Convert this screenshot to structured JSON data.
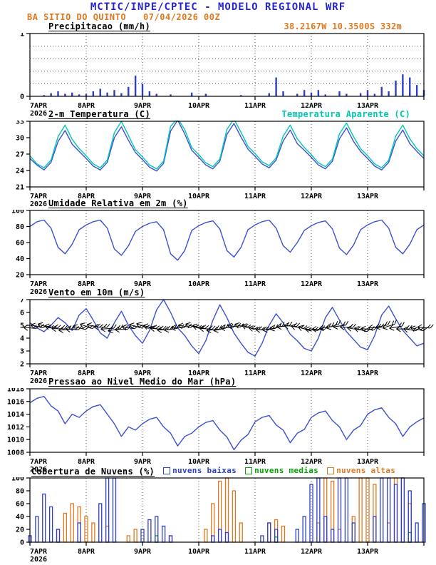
{
  "header": {
    "title": "MCTIC/INPE/CPTEC - MODELO REGIONAL WRF",
    "station": "BA SITIO DO QUINTO",
    "run_datetime": "07/04/2026 00Z",
    "location": "38.2167W 10.3500S 332m"
  },
  "colors": {
    "header_blue": "#2525c8",
    "orange": "#e07820",
    "line_blue": "#3c50d2",
    "cyan": "#00c8b4",
    "bar_blue": "#2d3fc8",
    "green": "#00a300",
    "black": "#000000"
  },
  "x_axis": {
    "hours_total": 168,
    "step_hours": 3,
    "tick_labels": [
      "7APR",
      "8APR",
      "9APR",
      "10APR",
      "11APR",
      "12APR",
      "13APR"
    ],
    "origin_year": "2026"
  },
  "chart_data": [
    {
      "id": "precipitacao",
      "type": "bar",
      "title": "Precipitacao (mm/h)",
      "right_label": "38.2167W 10.3500S 332m",
      "ylim": [
        0,
        1
      ],
      "yticks": [
        0,
        1
      ],
      "hgrid": [
        0.2,
        0.4,
        0.6,
        0.8
      ],
      "series": [
        {
          "name": "precipitacao",
          "color": "bar_blue",
          "values": [
            0,
            0,
            0.02,
            0.05,
            0.08,
            0.04,
            0.06,
            0.03,
            0.04,
            0.08,
            0.12,
            0.06,
            0.1,
            0.05,
            0.15,
            0.33,
            0.2,
            0.08,
            0.04,
            0,
            0.03,
            0,
            0,
            0.06,
            0,
            0.04,
            0,
            0,
            0,
            0,
            0.02,
            0,
            0,
            0,
            0.05,
            0.3,
            0.08,
            0,
            0.04,
            0.1,
            0.06,
            0.1,
            0.03,
            0,
            0.08,
            0.04,
            0,
            0.05,
            0.1,
            0.04,
            0.15,
            0.08,
            0.25,
            0.35,
            0.3,
            0.18,
            0.1
          ]
        }
      ]
    },
    {
      "id": "temperatura",
      "type": "line",
      "title": "2-m Temperatura (C)",
      "legend": [
        {
          "label": "Temperatura Aparente (C)",
          "color": "cyan",
          "swatch": false
        }
      ],
      "ylim": [
        21,
        33
      ],
      "yticks": [
        21,
        24,
        27,
        30,
        33
      ],
      "series": [
        {
          "name": "2-m Temperatura",
          "color": "line_blue",
          "values": [
            26.2,
            25.0,
            24.1,
            25.5,
            29.3,
            31.3,
            28.8,
            27.5,
            26.2,
            24.8,
            24.1,
            25.5,
            30.0,
            32.0,
            29.5,
            27.3,
            26.0,
            24.6,
            23.9,
            25.3,
            31.2,
            33.2,
            30.7,
            27.7,
            26.4,
            25.0,
            24.3,
            25.7,
            30.6,
            32.6,
            30.1,
            27.9,
            26.6,
            25.2,
            24.5,
            25.9,
            29.4,
            31.4,
            28.9,
            27.7,
            26.4,
            25.0,
            24.3,
            25.7,
            29.8,
            31.8,
            29.3,
            27.5,
            26.2,
            24.8,
            24.1,
            25.5,
            29.4,
            31.4,
            28.9,
            27.5,
            26.2
          ]
        },
        {
          "name": "Temperatura Aparente",
          "color": "cyan",
          "values": [
            26.7,
            25.2,
            24.5,
            25.9,
            30.2,
            32.3,
            29.7,
            28.0,
            26.7,
            25.2,
            24.5,
            25.9,
            30.9,
            33.0,
            30.4,
            27.8,
            26.5,
            25.0,
            24.3,
            25.7,
            32.1,
            33.5,
            31.5,
            28.2,
            26.9,
            25.4,
            24.7,
            26.1,
            31.5,
            33.4,
            31.0,
            28.4,
            27.1,
            25.6,
            24.9,
            26.3,
            30.3,
            32.3,
            29.8,
            28.2,
            26.9,
            25.4,
            24.7,
            26.1,
            30.7,
            32.7,
            30.2,
            28.0,
            26.7,
            25.2,
            24.5,
            25.9,
            30.3,
            32.3,
            29.8,
            28.0,
            26.7
          ]
        }
      ]
    },
    {
      "id": "umidade",
      "type": "line",
      "title": "Umidade Relativa em 2m (%)",
      "ylim": [
        20,
        100
      ],
      "yticks": [
        20,
        40,
        60,
        80,
        100
      ],
      "series": [
        {
          "name": "umidade relativa",
          "color": "line_blue",
          "values": [
            80,
            86,
            88,
            78,
            54,
            46,
            58,
            76,
            82,
            86,
            88,
            78,
            52,
            44,
            56,
            74,
            80,
            84,
            86,
            76,
            46,
            38,
            50,
            75,
            81,
            85,
            87,
            77,
            50,
            42,
            54,
            76,
            82,
            86,
            88,
            78,
            56,
            48,
            60,
            75,
            81,
            85,
            87,
            77,
            53,
            45,
            57,
            76,
            82,
            86,
            88,
            78,
            54,
            46,
            58,
            76,
            82
          ]
        }
      ]
    },
    {
      "id": "vento",
      "type": "wind",
      "title": "Vento em 10m (m/s)",
      "ylim": [
        2,
        7
      ],
      "yticks": [
        2,
        3,
        4,
        5,
        6,
        7
      ],
      "barb_value": 4.8,
      "barb_dirs": [
        5,
        12,
        18,
        10,
        2,
        -5,
        3,
        15,
        20,
        12,
        4,
        -4,
        -10,
        -2,
        8,
        16,
        22,
        14,
        6,
        -2,
        -8,
        0,
        10,
        18,
        12,
        4,
        -6,
        -12,
        -4,
        6,
        14,
        20,
        10,
        2,
        -8,
        -14,
        -6,
        4,
        12,
        18,
        8,
        0,
        -10,
        -16,
        -8,
        2,
        10,
        16,
        6,
        -2,
        -12,
        -18,
        -10,
        0,
        8,
        14,
        4
      ],
      "series": [
        {
          "name": "vento 10m",
          "color": "line_blue",
          "values": [
            5.2,
            4.8,
            4.5,
            5.0,
            5.6,
            5.2,
            4.6,
            5.8,
            6.3,
            5.4,
            4.4,
            4.0,
            5.2,
            6.1,
            5.0,
            4.2,
            3.6,
            4.6,
            6.2,
            7.0,
            6.0,
            4.8,
            4.2,
            3.4,
            2.8,
            3.8,
            5.4,
            6.6,
            5.6,
            4.4,
            3.6,
            2.9,
            2.6,
            3.6,
            5.0,
            5.9,
            5.2,
            4.3,
            3.8,
            3.2,
            3.0,
            4.0,
            5.6,
            6.4,
            5.4,
            4.5,
            3.9,
            3.3,
            3.1,
            4.2,
            5.8,
            6.5,
            5.5,
            4.6,
            4.0,
            3.4,
            3.6
          ]
        }
      ]
    },
    {
      "id": "pressao",
      "type": "line",
      "title": "Pressao ao Nivel Medio do Mar (hPa)",
      "ylim": [
        1008,
        1018
      ],
      "yticks": [
        1008,
        1010,
        1012,
        1014,
        1016,
        1018
      ],
      "series": [
        {
          "name": "pressao nivel do mar",
          "color": "line_blue",
          "values": [
            1015.8,
            1016.5,
            1016.8,
            1015.3,
            1014.5,
            1012.5,
            1014.0,
            1013.5,
            1014.5,
            1015.2,
            1015.5,
            1014.0,
            1012.5,
            1010.5,
            1012.0,
            1011.5,
            1012.5,
            1013.2,
            1013.5,
            1012.0,
            1011.0,
            1009.0,
            1010.5,
            1011.0,
            1012.0,
            1012.7,
            1013.0,
            1011.5,
            1010.4,
            1008.4,
            1009.9,
            1010.8,
            1012.8,
            1013.5,
            1013.8,
            1012.3,
            1011.5,
            1009.5,
            1011.0,
            1011.6,
            1013.5,
            1014.2,
            1014.5,
            1013.0,
            1012.0,
            1010.0,
            1011.5,
            1012.2,
            1014.0,
            1014.7,
            1015.0,
            1013.5,
            1012.5,
            1010.5,
            1012.0,
            1012.8,
            1013.4
          ]
        }
      ]
    },
    {
      "id": "nuvens",
      "type": "multibar",
      "title": "Cobertura de Nuvens (%)",
      "legend": [
        {
          "label": "nuvens baixas",
          "color": "bar_blue",
          "swatch": true
        },
        {
          "label": "nuvens medias",
          "color": "green",
          "swatch": true
        },
        {
          "label": "nuvens altas",
          "color": "orange",
          "swatch": true
        }
      ],
      "ylim": [
        0,
        100
      ],
      "yticks": [
        0,
        20,
        40,
        60,
        80,
        100
      ],
      "series": [
        {
          "name": "nuvens baixas",
          "color": "bar_blue",
          "values": [
            10,
            40,
            75,
            55,
            20,
            0,
            0,
            30,
            0,
            0,
            60,
            100,
            100,
            0,
            0,
            0,
            20,
            35,
            40,
            25,
            10,
            0,
            0,
            0,
            0,
            0,
            10,
            20,
            15,
            0,
            0,
            0,
            0,
            10,
            30,
            20,
            0,
            0,
            20,
            40,
            90,
            100,
            40,
            20,
            100,
            100,
            30,
            0,
            0,
            40,
            100,
            100,
            90,
            100,
            80,
            30,
            60
          ]
        },
        {
          "name": "nuvens medias",
          "color": "green",
          "values": [
            0,
            0,
            0,
            0,
            0,
            0,
            0,
            0,
            0,
            0,
            0,
            0,
            0,
            0,
            0,
            0,
            0,
            0,
            10,
            0,
            0,
            0,
            0,
            0,
            0,
            0,
            0,
            0,
            0,
            0,
            0,
            0,
            0,
            0,
            0,
            8,
            0,
            0,
            0,
            0,
            0,
            0,
            0,
            0,
            0,
            0,
            0,
            0,
            0,
            0,
            0,
            0,
            0,
            0,
            15,
            0,
            0
          ]
        },
        {
          "name": "nuvens altas",
          "color": "orange",
          "values": [
            0,
            0,
            0,
            0,
            20,
            45,
            60,
            55,
            40,
            30,
            0,
            25,
            0,
            0,
            10,
            20,
            0,
            0,
            0,
            0,
            10,
            0,
            0,
            0,
            0,
            20,
            60,
            95,
            100,
            80,
            30,
            0,
            0,
            0,
            30,
            35,
            25,
            0,
            0,
            0,
            0,
            30,
            100,
            95,
            20,
            0,
            40,
            100,
            100,
            90,
            0,
            30,
            100,
            100,
            60,
            0,
            0
          ]
        }
      ]
    }
  ]
}
